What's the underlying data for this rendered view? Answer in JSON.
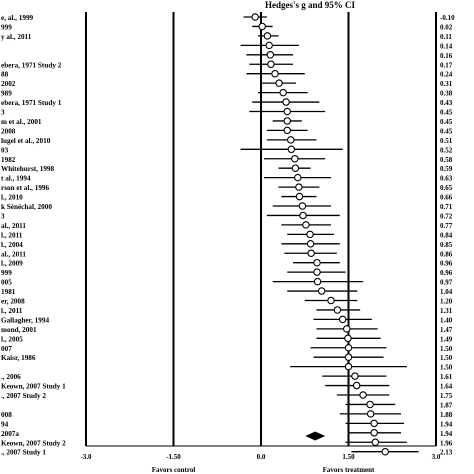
{
  "chart_data": {
    "type": "forest",
    "title": "Hedges's g and 95% CI",
    "x_axis": {
      "ticks": [
        -3.0,
        -1.5,
        0.0,
        1.5,
        3.0
      ],
      "tick_labels": [
        "-3.0",
        "-1.50",
        "0.0",
        "1.50",
        "3.0"
      ],
      "range": [
        -3.0,
        3.0
      ],
      "left_label": "Favors control",
      "right_label": "Favors treatment"
    },
    "studies": [
      {
        "label": "e, al., 1999",
        "g": -0.1,
        "g_label": "-0.10",
        "lower": -0.3,
        "upper": 0.1
      },
      {
        "label": "999",
        "g": 0.02,
        "g_label": "0.02",
        "lower": -0.15,
        "upper": 0.2
      },
      {
        "label": "y al., 2011",
        "g": 0.11,
        "g_label": "0.11",
        "lower": -0.05,
        "upper": 0.3
      },
      {
        "label": "",
        "g": 0.14,
        "g_label": "0.14",
        "lower": -0.35,
        "upper": 0.65
      },
      {
        "label": "",
        "g": 0.16,
        "g_label": "0.16",
        "lower": -0.25,
        "upper": 0.55
      },
      {
        "label": "ebera, 1971 Study 2",
        "g": 0.17,
        "g_label": "0.17",
        "lower": -0.2,
        "upper": 0.55
      },
      {
        "label": "88",
        "g": 0.24,
        "g_label": "0.24",
        "lower": -0.25,
        "upper": 0.75
      },
      {
        "label": "2002",
        "g": 0.31,
        "g_label": "0.31",
        "lower": 0.0,
        "upper": 0.6
      },
      {
        "label": "989",
        "g": 0.38,
        "g_label": "0.38",
        "lower": -0.05,
        "upper": 0.8
      },
      {
        "label": "ebera, 1971 Study 1",
        "g": 0.43,
        "g_label": "0.43",
        "lower": -0.15,
        "upper": 1.0
      },
      {
        "label": "3",
        "g": 0.45,
        "g_label": "0.45",
        "lower": -0.2,
        "upper": 1.1
      },
      {
        "label": "m et al., 2001",
        "g": 0.45,
        "g_label": "0.45",
        "lower": 0.2,
        "upper": 0.7
      },
      {
        "label": "2008",
        "g": 0.45,
        "g_label": "0.45",
        "lower": 0.1,
        "upper": 0.8
      },
      {
        "label": "lugel et al., 2010",
        "g": 0.51,
        "g_label": "0.51",
        "lower": 0.1,
        "upper": 0.95
      },
      {
        "label": "03",
        "g": 0.52,
        "g_label": "0.52",
        "lower": -0.35,
        "upper": 1.4
      },
      {
        "label": "1982",
        "g": 0.58,
        "g_label": "0.58",
        "lower": 0.05,
        "upper": 1.1
      },
      {
        "label": "Whitehurst, 1998",
        "g": 0.59,
        "g_label": "0.59",
        "lower": 0.3,
        "upper": 0.85
      },
      {
        "label": "t al., 1994",
        "g": 0.63,
        "g_label": "0.63",
        "lower": 0.05,
        "upper": 1.2
      },
      {
        "label": "rson et al., 1996",
        "g": 0.65,
        "g_label": "0.65",
        "lower": 0.3,
        "upper": 1.0
      },
      {
        "label": "l., 2010",
        "g": 0.66,
        "g_label": "0.66",
        "lower": 0.35,
        "upper": 0.95
      },
      {
        "label": "k Sénéchal, 2000",
        "g": 0.71,
        "g_label": "0.71",
        "lower": 0.2,
        "upper": 1.2
      },
      {
        "label": "3",
        "g": 0.72,
        "g_label": "0.72",
        "lower": 0.1,
        "upper": 1.35
      },
      {
        "label": "al., 2011",
        "g": 0.77,
        "g_label": "0.77",
        "lower": 0.35,
        "upper": 1.2
      },
      {
        "label": "l., 2011",
        "g": 0.84,
        "g_label": "0.84",
        "lower": 0.45,
        "upper": 1.25
      },
      {
        "label": "l., 2004",
        "g": 0.85,
        "g_label": "0.85",
        "lower": 0.35,
        "upper": 1.35
      },
      {
        "label": "al., 2011",
        "g": 0.86,
        "g_label": "0.86",
        "lower": 0.4,
        "upper": 1.3
      },
      {
        "label": "l., 2009",
        "g": 0.96,
        "g_label": "0.96",
        "lower": 0.55,
        "upper": 1.35
      },
      {
        "label": "999",
        "g": 0.96,
        "g_label": "0.96",
        "lower": 0.45,
        "upper": 1.45
      },
      {
        "label": "005",
        "g": 0.97,
        "g_label": "0.97",
        "lower": 0.2,
        "upper": 1.75
      },
      {
        "label": "1981",
        "g": 1.04,
        "g_label": "1.04",
        "lower": 0.45,
        "upper": 1.65
      },
      {
        "label": "er, 2008",
        "g": 1.2,
        "g_label": "1.20",
        "lower": 0.75,
        "upper": 1.65
      },
      {
        "label": "l., 2011",
        "g": 1.31,
        "g_label": "1.31",
        "lower": 0.95,
        "upper": 1.7
      },
      {
        "label": "Gallagher, 1994",
        "g": 1.4,
        "g_label": "1.40",
        "lower": 0.9,
        "upper": 1.9
      },
      {
        "label": "mond, 2001",
        "g": 1.47,
        "g_label": "1.47",
        "lower": 0.95,
        "upper": 2.0
      },
      {
        "label": "l., 2005",
        "g": 1.49,
        "g_label": "1.49",
        "lower": 0.95,
        "upper": 2.05
      },
      {
        "label": "007",
        "g": 1.5,
        "g_label": "1.50",
        "lower": 0.85,
        "upper": 2.15
      },
      {
        "label": "Kaisr, 1986",
        "g": 1.5,
        "g_label": "1.50",
        "lower": 0.9,
        "upper": 2.1
      },
      {
        "label": "",
        "g": 1.5,
        "g_label": "1.50",
        "lower": 0.5,
        "upper": 2.5
      },
      {
        "label": "., 2006",
        "g": 1.61,
        "g_label": "1.61",
        "lower": 1.05,
        "upper": 2.15
      },
      {
        "label": "Keown, 2007 Study 1",
        "g": 1.64,
        "g_label": "1.64",
        "lower": 1.1,
        "upper": 2.2
      },
      {
        "label": "., 2007 Study 2",
        "g": 1.75,
        "g_label": "1.75",
        "lower": 1.3,
        "upper": 2.2
      },
      {
        "label": "",
        "g": 1.87,
        "g_label": "1.87",
        "lower": 1.45,
        "upper": 2.3
      },
      {
        "label": "008",
        "g": 1.88,
        "g_label": "1.88",
        "lower": 1.35,
        "upper": 2.4
      },
      {
        "label": "94",
        "g": 1.94,
        "g_label": "1.94",
        "lower": 1.45,
        "upper": 2.45
      },
      {
        "label": "2007a",
        "g": 1.94,
        "g_label": "1.94",
        "lower": 1.5,
        "upper": 2.4
      },
      {
        "label": "Keown, 2007 Study 2",
        "g": 1.96,
        "g_label": "1.96",
        "lower": 1.45,
        "upper": 2.5
      },
      {
        "label": "., 2007 Study 1",
        "g": 2.13,
        "g_label": "2.13",
        "lower": 1.55,
        "upper": 2.7
      }
    ],
    "summary": {
      "g": 0.93,
      "lower": 0.78,
      "upper": 1.08
    }
  }
}
